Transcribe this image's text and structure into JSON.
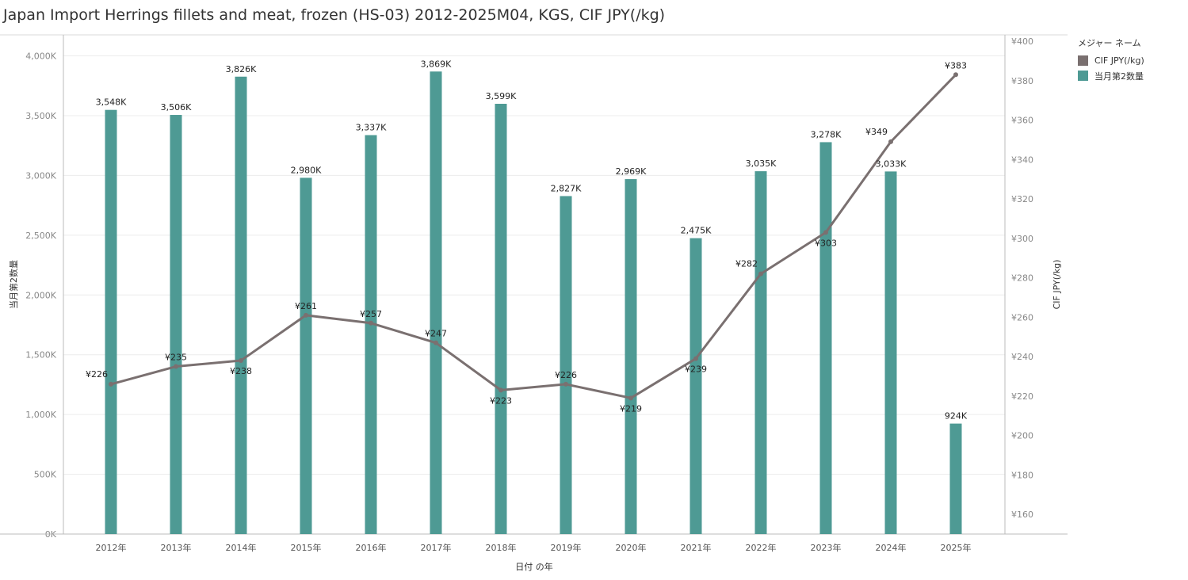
{
  "title": "Japan Import Herrings fillets and meat, frozen (HS-03) 2012-2025M04, KGS, CIF JPY(/kg)",
  "legend": {
    "title": "メジャー ネーム",
    "items": [
      {
        "label": "CIF JPY(/kg)",
        "color": "#7a7070"
      },
      {
        "label": "当月第2数量",
        "color": "#4e9a94"
      }
    ]
  },
  "colors": {
    "bar": "#4e9a94",
    "line": "#7a7070",
    "grid": "#ececec",
    "axis": "#bbbbbb",
    "tick": "#888888"
  },
  "chart_data": {
    "type": "bar+line",
    "xlabel": "日付 の年",
    "ylabel_left": "当月第2数量",
    "ylabel_right": "CIF JPY(/kg)",
    "categories": [
      "2012年",
      "2013年",
      "2014年",
      "2015年",
      "2016年",
      "2017年",
      "2018年",
      "2019年",
      "2020年",
      "2021年",
      "2022年",
      "2023年",
      "2024年",
      "2025年"
    ],
    "y_left": {
      "min": 0,
      "max": 4000,
      "ticks": [
        0,
        500,
        1000,
        1500,
        2000,
        2500,
        3000,
        3500,
        4000
      ],
      "tick_labels": [
        "0K",
        "500K",
        "1,000K",
        "1,500K",
        "2,000K",
        "2,500K",
        "3,000K",
        "3,500K",
        "4,000K"
      ]
    },
    "y_right": {
      "min": 150,
      "max": 400,
      "ticks": [
        160,
        180,
        200,
        220,
        240,
        260,
        280,
        300,
        320,
        340,
        360,
        380,
        400
      ],
      "tick_labels": [
        "¥160",
        "¥180",
        "¥200",
        "¥220",
        "¥240",
        "¥260",
        "¥280",
        "¥300",
        "¥320",
        "¥340",
        "¥360",
        "¥380",
        "¥400"
      ]
    },
    "series": [
      {
        "name": "当月第2数量",
        "type": "bar",
        "axis": "left",
        "values": [
          3548,
          3506,
          3826,
          2980,
          3337,
          3869,
          3599,
          2827,
          2969,
          2475,
          3035,
          3278,
          3033,
          924
        ],
        "labels": [
          "3,548K",
          "3,506K",
          "3,826K",
          "2,980K",
          "3,337K",
          "3,869K",
          "3,599K",
          "2,827K",
          "2,969K",
          "2,475K",
          "3,035K",
          "3,278K",
          "3,033K",
          "924K"
        ]
      },
      {
        "name": "CIF JPY(/kg)",
        "type": "line",
        "axis": "right",
        "values": [
          226,
          235,
          238,
          261,
          257,
          247,
          223,
          226,
          219,
          239,
          282,
          303,
          349,
          383
        ],
        "labels": [
          "¥226",
          "¥235",
          "¥238",
          "¥261",
          "¥257",
          "¥247",
          "¥223",
          "¥226",
          "¥219",
          "¥239",
          "¥282",
          "¥303",
          "¥349",
          "¥383"
        ],
        "label_pos": [
          "left",
          "above",
          "below",
          "above",
          "above",
          "above",
          "below",
          "above",
          "below",
          "below",
          "left",
          "below",
          "left",
          "above"
        ]
      }
    ],
    "grid": true,
    "legend_position": "top-right"
  }
}
